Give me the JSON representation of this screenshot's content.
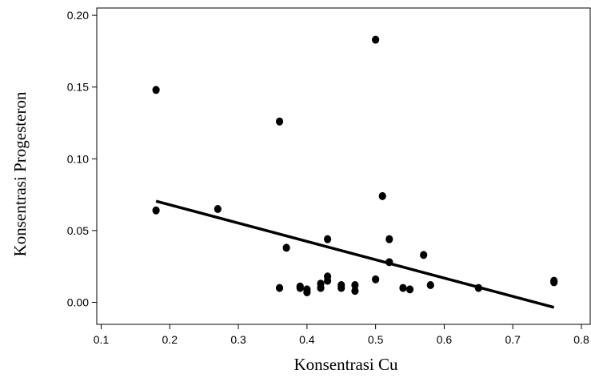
{
  "chart_data": {
    "type": "scatter",
    "title": "",
    "xlabel": "Konsentrasi Cu",
    "ylabel": "Konsentrasi Progesteron",
    "xlim": [
      0.1,
      0.8
    ],
    "ylim": [
      0.0,
      0.2
    ],
    "x_ticks": [
      "0.1",
      "0.2",
      "0.3",
      "0.4",
      "0.5",
      "0.6",
      "0.7",
      "0.8"
    ],
    "y_ticks": [
      "0.00",
      "0.05",
      "0.10",
      "0.15",
      "0.20"
    ],
    "grid": false,
    "legend": "none",
    "series": [
      {
        "points": [
          {
            "x": 0.18,
            "y": 0.148
          },
          {
            "x": 0.18,
            "y": 0.064
          },
          {
            "x": 0.27,
            "y": 0.065
          },
          {
            "x": 0.36,
            "y": 0.126
          },
          {
            "x": 0.36,
            "y": 0.01
          },
          {
            "x": 0.37,
            "y": 0.038
          },
          {
            "x": 0.39,
            "y": 0.011
          },
          {
            "x": 0.39,
            "y": 0.01
          },
          {
            "x": 0.4,
            "y": 0.009
          },
          {
            "x": 0.4,
            "y": 0.007
          },
          {
            "x": 0.42,
            "y": 0.013
          },
          {
            "x": 0.42,
            "y": 0.01
          },
          {
            "x": 0.43,
            "y": 0.044
          },
          {
            "x": 0.43,
            "y": 0.018
          },
          {
            "x": 0.43,
            "y": 0.015
          },
          {
            "x": 0.45,
            "y": 0.012
          },
          {
            "x": 0.45,
            "y": 0.01
          },
          {
            "x": 0.47,
            "y": 0.012
          },
          {
            "x": 0.47,
            "y": 0.008
          },
          {
            "x": 0.5,
            "y": 0.183
          },
          {
            "x": 0.5,
            "y": 0.016
          },
          {
            "x": 0.51,
            "y": 0.074
          },
          {
            "x": 0.52,
            "y": 0.044
          },
          {
            "x": 0.52,
            "y": 0.028
          },
          {
            "x": 0.54,
            "y": 0.01
          },
          {
            "x": 0.55,
            "y": 0.009
          },
          {
            "x": 0.57,
            "y": 0.033
          },
          {
            "x": 0.58,
            "y": 0.012
          },
          {
            "x": 0.65,
            "y": 0.01
          },
          {
            "x": 0.76,
            "y": 0.015
          },
          {
            "x": 0.76,
            "y": 0.014
          }
        ]
      }
    ],
    "trendline": {
      "x": [
        0.18,
        0.76
      ],
      "y": [
        0.0705,
        -0.0035
      ]
    },
    "colors": {
      "points": "#000000",
      "trendline": "#000000",
      "axes": "#000000"
    }
  }
}
